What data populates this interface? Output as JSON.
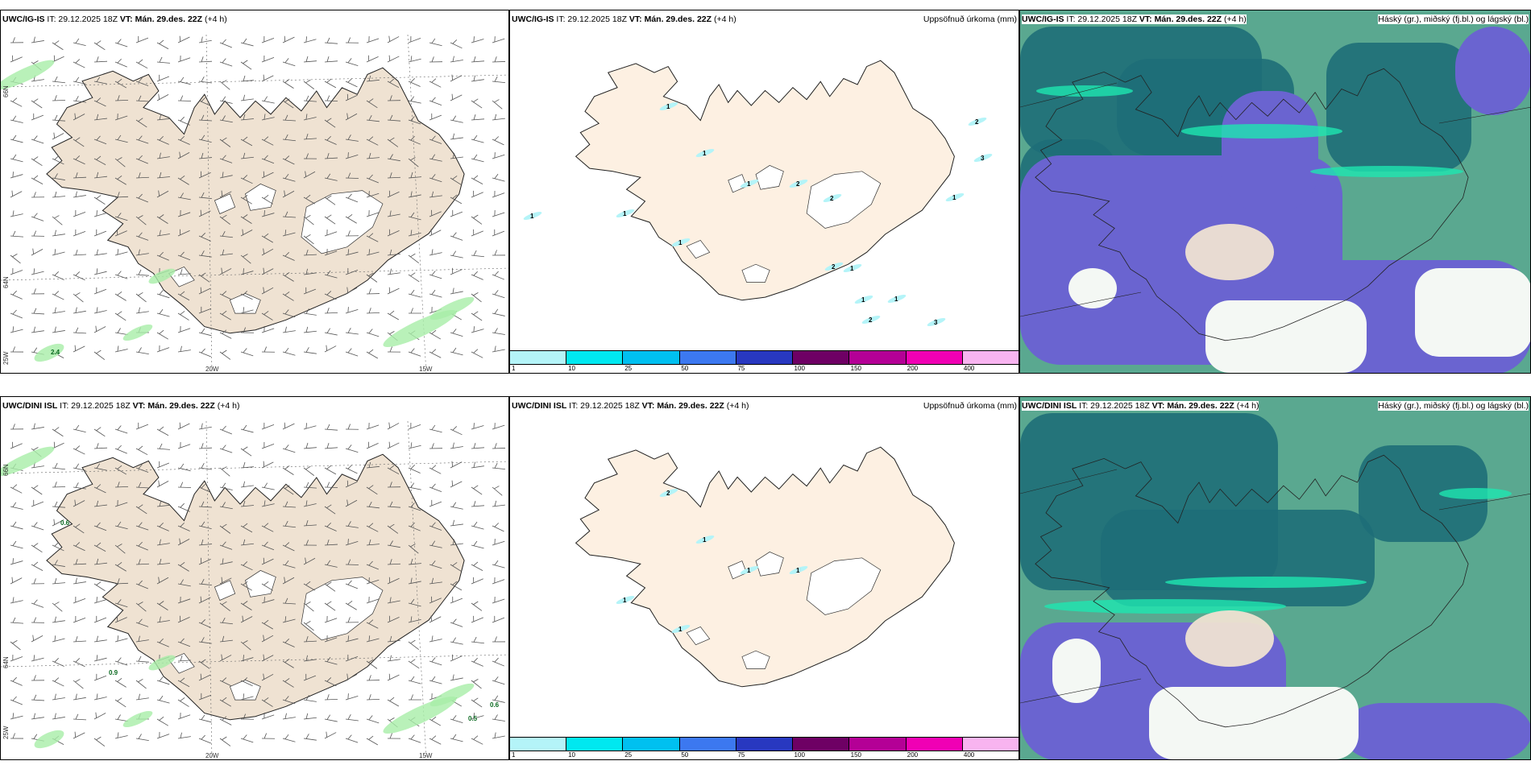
{
  "panels": [
    {
      "model": "UWC/IG-IS",
      "it": "IT: 29.12.2025 18Z",
      "vt": "VT: Mán. 29.des. 22Z",
      "lead": "(+4 h)",
      "right": ""
    },
    {
      "model": "UWC/IG-IS",
      "it": "IT: 29.12.2025 18Z",
      "vt": "VT: Mán. 29.des. 22Z",
      "lead": "(+4 h)",
      "right": "Uppsöfnuð úrkoma (mm)"
    },
    {
      "model": "UWC/IG-IS",
      "it": "IT: 29.12.2025 18Z",
      "vt": "VT: Mán. 29.des. 22Z",
      "lead": "(+4 h)",
      "right": "Háský (gr.), miðský (fj.bl.) og lágský (bl.)"
    },
    {
      "model": "UWC/DINI ISL",
      "it": "IT: 29.12.2025 18Z",
      "vt": "VT: Mán. 29.des. 22Z",
      "lead": "(+4 h)",
      "right": ""
    },
    {
      "model": "UWC/DINI ISL",
      "it": "IT: 29.12.2025 18Z",
      "vt": "VT: Mán. 29.des. 22Z",
      "lead": "(+4 h)",
      "right": "Uppsöfnuð úrkoma (mm)"
    },
    {
      "model": "UWC/DINI ISL",
      "it": "IT: 29.12.2025 18Z",
      "vt": "VT: Mán. 29.des. 22Z",
      "lead": "(+4 h)",
      "right": "Háský (gr.), miðský (fj.bl.) og lágský (bl.)"
    }
  ],
  "axes": {
    "lat_top": "66N",
    "lat_bottom": "64N",
    "lon_left": "25W",
    "lon_mid": "20W",
    "lon_right": "15W"
  },
  "colorbar": {
    "ticks": [
      "1",
      "10",
      "25",
      "50",
      "75",
      "100",
      "150",
      "200",
      "400"
    ],
    "colors": [
      "#b4f4f8",
      "#00e8f0",
      "#00c0f0",
      "#3c78f0",
      "#2838c0",
      "#6e0064",
      "#b40096",
      "#f000b4",
      "#f8b4f0"
    ]
  },
  "values": {
    "p1_contour": "2.4",
    "p4_contours": [
      "0.6",
      "0.9",
      "0.6",
      "0.5"
    ],
    "p2_precip": [
      "1",
      "1",
      "1",
      "1",
      "1",
      "2",
      "2",
      "2",
      "1",
      "2",
      "3",
      "2",
      "3",
      "1",
      "1",
      "1",
      "1"
    ],
    "p5_precip": [
      "1",
      "1",
      "2",
      "1",
      "1",
      "1"
    ]
  },
  "colors": {
    "land": "#efe2d2",
    "land_precip": "#fdf0e2",
    "ice": "#ffffff",
    "cloud_low": "#6a64d0",
    "cloud_mid": "#1e6e78",
    "cloud_high": "#5aa890",
    "cloud_edge": "#1ee6b0"
  }
}
